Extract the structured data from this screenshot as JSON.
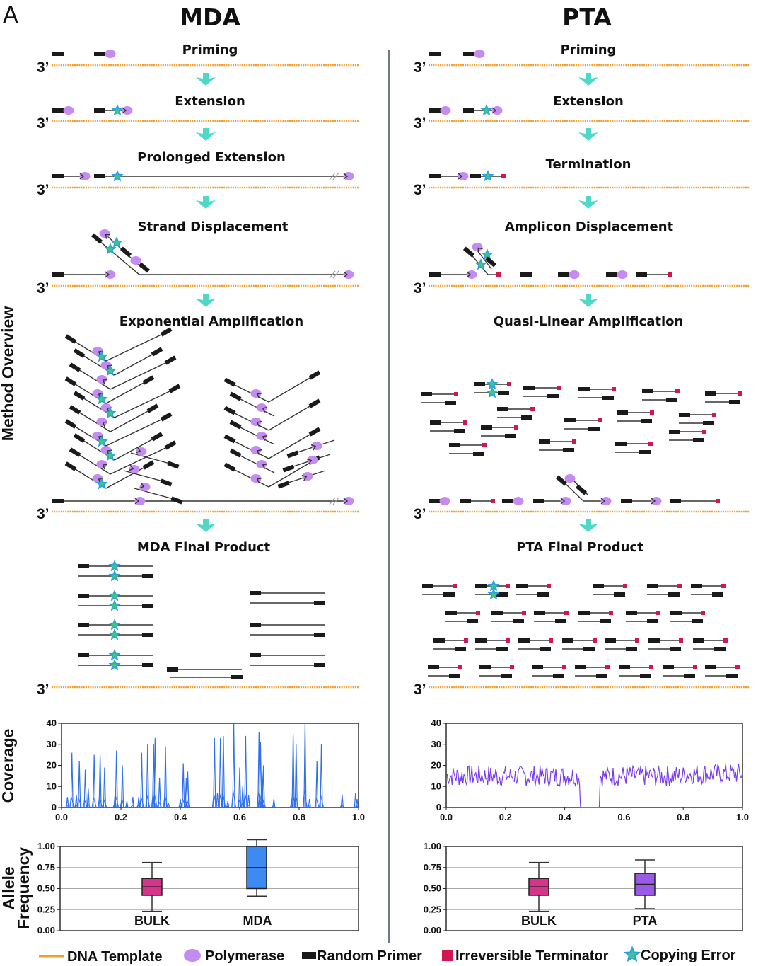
{
  "panel_label": "A",
  "mda": {
    "title": "MDA",
    "steps": [
      "Priming",
      "Extension",
      "Prolonged Extension",
      "Strand Displacement",
      "Exponential Amplification",
      "MDA Final Product"
    ]
  },
  "pta": {
    "title": "PTA",
    "steps": [
      "Priming",
      "Extension",
      "Termination",
      "Amplicon Displacement",
      "Quasi-Linear Amplification",
      "PTA Final Product"
    ]
  },
  "three_prime": "3’",
  "side_labels": {
    "overview": "Method Overview",
    "coverage": "Coverage",
    "allele_1": "Allele",
    "allele_2": "Frequency"
  },
  "colors": {
    "template": "#f0a030",
    "polymerase": "#c48cf0",
    "primer": "#1a1a1a",
    "terminator": "#d0174f",
    "star_fill": "#3ec97a",
    "star_stroke": "#2a9fe0",
    "arrow": "#4fd8c8",
    "divider": "#6b7b8b",
    "mda_line": "#2f6ff0",
    "pta_line": "#7a3cf0",
    "bulk": "#d6338a",
    "mda_box": "#3d8af0",
    "pta_box": "#9b59e8"
  },
  "chart_data": [
    {
      "type": "line",
      "name": "MDA coverage",
      "ylabel": "Coverage",
      "xlim": [
        0,
        1
      ],
      "ylim": [
        0,
        40
      ],
      "x_ticks": [
        "0.0",
        "0.2",
        "0.4",
        "0.6",
        "0.8",
        "1.0"
      ],
      "y_ticks": [
        "0",
        "10",
        "20",
        "30",
        "40"
      ],
      "peaks": [
        [
          0.02,
          5
        ],
        [
          0.035,
          26
        ],
        [
          0.05,
          6
        ],
        [
          0.06,
          22
        ],
        [
          0.08,
          18
        ],
        [
          0.09,
          9
        ],
        [
          0.11,
          25
        ],
        [
          0.13,
          25
        ],
        [
          0.145,
          19
        ],
        [
          0.18,
          6
        ],
        [
          0.185,
          27
        ],
        [
          0.205,
          20
        ],
        [
          0.22,
          3
        ],
        [
          0.24,
          5
        ],
        [
          0.26,
          5
        ],
        [
          0.27,
          26
        ],
        [
          0.29,
          30
        ],
        [
          0.31,
          30
        ],
        [
          0.315,
          33
        ],
        [
          0.33,
          14
        ],
        [
          0.35,
          29
        ],
        [
          0.36,
          2
        ],
        [
          0.4,
          4
        ],
        [
          0.41,
          21
        ],
        [
          0.42,
          14
        ],
        [
          0.425,
          17
        ],
        [
          0.515,
          33
        ],
        [
          0.525,
          7
        ],
        [
          0.535,
          33
        ],
        [
          0.545,
          34
        ],
        [
          0.56,
          3
        ],
        [
          0.58,
          40
        ],
        [
          0.6,
          19
        ],
        [
          0.61,
          10
        ],
        [
          0.62,
          34
        ],
        [
          0.63,
          6
        ],
        [
          0.665,
          36
        ],
        [
          0.67,
          31
        ],
        [
          0.675,
          17
        ],
        [
          0.68,
          20
        ],
        [
          0.715,
          4
        ],
        [
          0.775,
          4
        ],
        [
          0.78,
          35
        ],
        [
          0.79,
          30
        ],
        [
          0.82,
          40
        ],
        [
          0.835,
          4
        ],
        [
          0.86,
          22
        ],
        [
          0.875,
          30
        ],
        [
          0.945,
          6
        ],
        [
          0.99,
          7
        ],
        [
          0.995,
          4
        ]
      ]
    },
    {
      "type": "line",
      "name": "PTA coverage",
      "xlim": [
        0,
        1
      ],
      "ylim": [
        0,
        40
      ],
      "x_ticks": [
        "0.0",
        "0.2",
        "0.4",
        "0.6",
        "0.8",
        "1.0"
      ],
      "y_ticks": [
        "0",
        "10",
        "20",
        "30",
        "40"
      ],
      "mean": 15,
      "noise_amplitude": 5,
      "dropout": [
        0.45,
        0.52
      ]
    },
    {
      "type": "box",
      "name": "MDA allele frequency",
      "ylabel": "Allele Frequency",
      "ylim": [
        0,
        1
      ],
      "y_ticks": [
        "0.00",
        "0.25",
        "0.50",
        "0.75",
        "1.00"
      ],
      "boxes": [
        {
          "label": "BULK",
          "whisker_low": 0.23,
          "q1": 0.42,
          "median": 0.52,
          "q3": 0.62,
          "whisker_high": 0.81,
          "color": "#d6338a"
        },
        {
          "label": "MDA",
          "whisker_low": 0.41,
          "q1": 0.5,
          "median": 0.75,
          "q3": 1.0,
          "whisker_high": 1.08,
          "color": "#3d8af0"
        }
      ]
    },
    {
      "type": "box",
      "name": "PTA allele frequency",
      "ylim": [
        0,
        1
      ],
      "y_ticks": [
        "0.00",
        "0.25",
        "0.50",
        "0.75",
        "1.00"
      ],
      "boxes": [
        {
          "label": "BULK",
          "whisker_low": 0.23,
          "q1": 0.42,
          "median": 0.52,
          "q3": 0.62,
          "whisker_high": 0.81,
          "color": "#d6338a"
        },
        {
          "label": "PTA",
          "whisker_low": 0.26,
          "q1": 0.42,
          "median": 0.55,
          "q3": 0.68,
          "whisker_high": 0.84,
          "color": "#9b59e8"
        }
      ]
    }
  ],
  "legend": [
    {
      "label": "DNA Template",
      "icon": "template-line-icon"
    },
    {
      "label": "Polymerase",
      "icon": "polymerase-icon"
    },
    {
      "label": "Random Primer",
      "icon": "primer-icon"
    },
    {
      "label": "Irreversible Terminator",
      "icon": "terminator-icon"
    },
    {
      "label": "Copying Error",
      "icon": "star-icon"
    }
  ]
}
